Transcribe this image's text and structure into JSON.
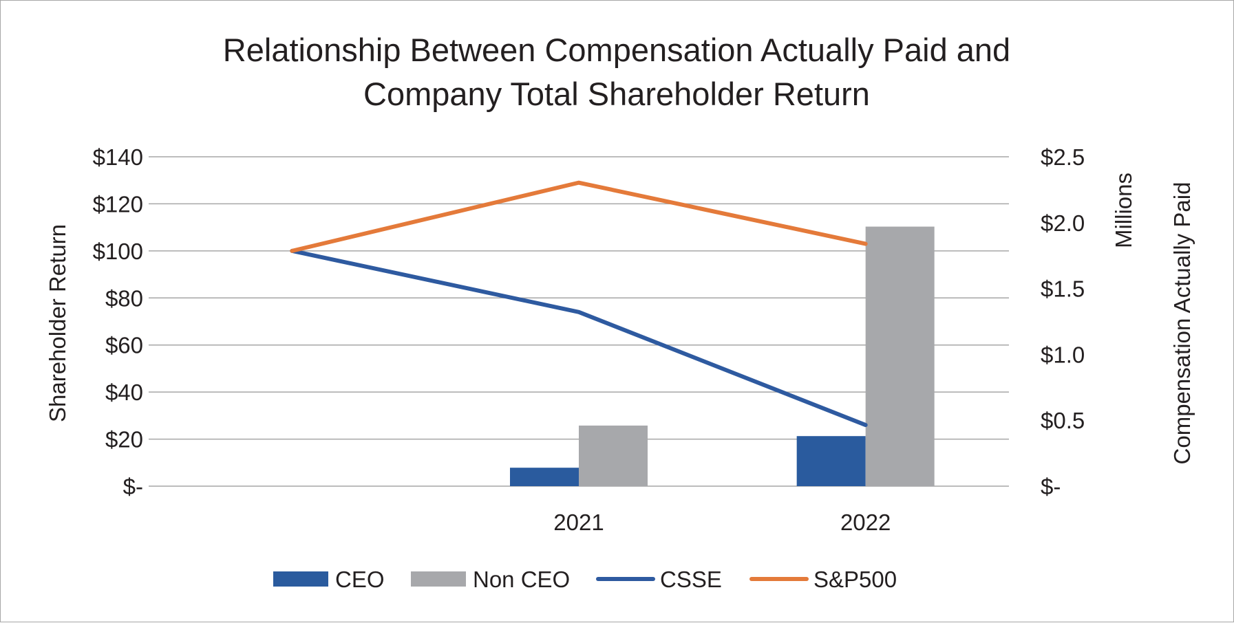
{
  "chart_data": {
    "type": "bar+line",
    "title_lines": [
      "Relationship Between Compensation Actually Paid and",
      "Company Total Shareholder Return"
    ],
    "left_axis": {
      "label": "Shareholder Return",
      "ylim": [
        0,
        140
      ],
      "ticks": [
        0,
        20,
        40,
        60,
        80,
        100,
        120,
        140
      ],
      "tick_labels": [
        "$-",
        "$20",
        "$40",
        "$60",
        "$80",
        "$100",
        "$120",
        "$140"
      ]
    },
    "right_axis": {
      "label": "Compensation Actually Paid",
      "units_label": "Millions",
      "ylim": [
        0,
        2.5
      ],
      "ticks": [
        0,
        0.5,
        1.0,
        1.5,
        2.0,
        2.5
      ],
      "tick_labels": [
        "$-",
        "$0.5",
        "$1.0",
        "$1.5",
        "$2.0",
        "$2.5"
      ]
    },
    "categories": [
      "",
      "2021",
      "2022"
    ],
    "bar_series": [
      {
        "name": "CEO",
        "color": "#2a5b9e",
        "axis": "right",
        "values": [
          null,
          0.14,
          0.38
        ]
      },
      {
        "name": "Non CEO",
        "color": "#a7a8ab",
        "axis": "right",
        "values": [
          null,
          0.46,
          1.97
        ]
      }
    ],
    "line_series": [
      {
        "name": "CSSE",
        "color": "#2e5aa0",
        "axis": "left",
        "values": [
          100,
          74,
          26
        ]
      },
      {
        "name": "S&P500",
        "color": "#e47a3a",
        "axis": "left",
        "values": [
          100,
          129,
          103
        ]
      }
    ],
    "grid": true,
    "legend_position": "bottom-center"
  }
}
